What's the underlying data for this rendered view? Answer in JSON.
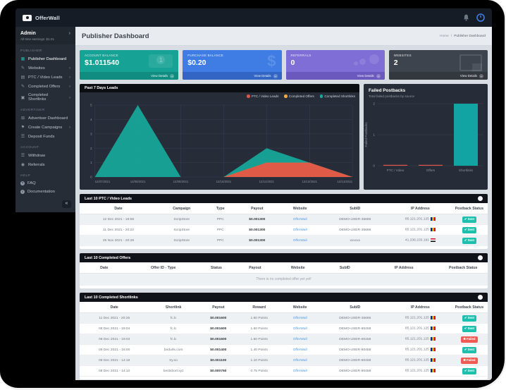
{
  "navbar": {
    "brand": "OfferWall"
  },
  "user": {
    "name": "Admin",
    "earnings": "All time earnings: $1.01"
  },
  "sidebar": {
    "sections": [
      {
        "label": "PUBLISHER",
        "items": [
          {
            "label": "Publisher Dashboard",
            "icon": "dashboard-icon",
            "active": true
          },
          {
            "label": "Websites",
            "icon": "edit-square-icon",
            "chevron": true
          },
          {
            "label": "PTC / Video Leads",
            "icon": "table-icon",
            "chevron": true
          },
          {
            "label": "Completed Offers",
            "icon": "edit-square-icon",
            "chevron": true
          },
          {
            "label": "Completed Shortlinks",
            "icon": "link-square-icon",
            "chevron": true
          }
        ]
      },
      {
        "label": "ADVERTISER",
        "items": [
          {
            "label": "Advertiser Dashboard",
            "icon": "grid-icon"
          },
          {
            "label": "Create Campaigns",
            "icon": "flag-icon",
            "chevron": true
          },
          {
            "label": "Deposit Funds",
            "icon": "bars-icon"
          }
        ]
      },
      {
        "label": "ACCOUNT",
        "items": [
          {
            "label": "Withdraw",
            "icon": "bars-icon"
          },
          {
            "label": "Referrals",
            "icon": "users-icon"
          }
        ]
      },
      {
        "label": "HELP",
        "items": [
          {
            "label": "FAQ",
            "icon": "question-circle-icon"
          },
          {
            "label": "Documentation",
            "icon": "info-circle-icon"
          }
        ]
      }
    ]
  },
  "header": {
    "title": "Publisher Dashboard",
    "breadcrumb": [
      "Home",
      "Publisher Dashboard"
    ]
  },
  "cards": [
    {
      "label": "ACCOUNT BALANCE",
      "value": "$1.011540",
      "link": "View Details",
      "color": "#16a294",
      "footer": "#108d80",
      "icon": "money-bill-icon"
    },
    {
      "label": "PURCHASE BALANCE",
      "value": "$0.20",
      "link": "View Details",
      "color": "#3f7de4",
      "footer": "#3366c4",
      "icon": "dollar-icon"
    },
    {
      "label": "REFERRALS",
      "value": "0",
      "link": "View Details",
      "color": "#7f6ed6",
      "footer": "#6b59bd",
      "icon": "users-circles-icon"
    },
    {
      "label": "WEBSITES",
      "value": "2",
      "link": "View Details",
      "color": "#3e444e",
      "footer": "#33383f",
      "icon": "browser-icon"
    }
  ],
  "chart_data": [
    {
      "type": "area",
      "title": "Past 7 Days Leads",
      "x": [
        "12/07/2021",
        "12/08/2021",
        "12/09/2021",
        "12/10/2021",
        "12/11/2021",
        "12/12/2021",
        "12/13/2021"
      ],
      "series": [
        {
          "name": "PTC / Video Leads",
          "color": "#e05449",
          "values": [
            0,
            0,
            0,
            0,
            1,
            1,
            0
          ]
        },
        {
          "name": "Completed Offers",
          "color": "#f3a83b",
          "values": [
            0,
            0,
            0,
            0,
            0,
            0,
            0
          ]
        },
        {
          "name": "Completed Shortlinks",
          "color": "#16a99b",
          "values": [
            0,
            5,
            0,
            0,
            1,
            0,
            0
          ]
        }
      ],
      "stacked": true,
      "ylim": [
        0,
        5
      ],
      "grid": true,
      "legend_position": "top-right"
    },
    {
      "type": "bar",
      "title": "Failed Postbacks",
      "subtitle": "Total failed postbacks by source",
      "categories": [
        "PTC / Video",
        "Offers",
        "Shortlinks"
      ],
      "values": [
        0,
        0,
        2
      ],
      "bar_colors": [
        "#e05449",
        "#e05449",
        "#12a3a3"
      ],
      "ylabel": "Failed Postbacks",
      "ylim": [
        0,
        2
      ],
      "grid": true
    }
  ],
  "tables": {
    "ptc": {
      "title": "Last 10 PTC / Video Leads",
      "columns": [
        "Date",
        "Campaign",
        "Type",
        "Payout",
        "Website",
        "SubID",
        "IP Address",
        "Postback Status"
      ],
      "rows": [
        {
          "date": "12 Dec 2021 - 18:58",
          "campaign": "ScripStore",
          "type": "PPC",
          "payout": "$0.001300",
          "website": "OfferWall",
          "subid": "DEMO-USER-35686",
          "ip": "85.121.201.125",
          "flag": "ro",
          "status": "Sent"
        },
        {
          "date": "11 Dec 2021 - 20:22",
          "campaign": "ScripStore",
          "type": "PPC",
          "payout": "$0.001300",
          "website": "OfferWall",
          "subid": "DEMO-USER-35686",
          "ip": "85.121.201.125",
          "flag": "ro",
          "status": "Sent"
        },
        {
          "date": "25 Nov 2021 - 20:28",
          "campaign": "ScripStore",
          "type": "PPC",
          "payout": "$0.001300",
          "website": "OfferWall",
          "subid": "xxxxxx",
          "ip": "41.236.233.191",
          "flag": "eg",
          "status": "Sent"
        }
      ]
    },
    "offers": {
      "title": "Last 10 Completed Offers",
      "columns": [
        "Date",
        "Offer ID - Type",
        "Status",
        "Payout",
        "Website",
        "SubID",
        "IP Address",
        "Postback Status"
      ],
      "rows": [],
      "empty": "There is no completed offer yet yet!"
    },
    "shortlinks": {
      "title": "Last 10 Completed Shortlinks",
      "columns": [
        "Date",
        "Shortlink",
        "Payout",
        "Reward",
        "Website",
        "SubID",
        "IP Address",
        "Postback Status"
      ],
      "rows": [
        {
          "date": "11 Dec 2021 - 20:25",
          "shortlink": "fc.lc",
          "payout": "$0.001600",
          "reward": "1.60 Points",
          "website": "OfferWall",
          "subid": "DEMO-USER-35686",
          "ip": "85.121.201.125",
          "flag": "ro",
          "status": "Sent"
        },
        {
          "date": "08 Dec 2021 - 19:04",
          "shortlink": "fc.lc",
          "payout": "$0.001600",
          "reward": "1.60 Points",
          "website": "OfferWall",
          "subid": "DEMO-USER-80458",
          "ip": "85.121.201.125",
          "flag": "ro",
          "status": "Sent"
        },
        {
          "date": "08 Dec 2021 - 19:03",
          "shortlink": "fc.lc",
          "payout": "$0.001600",
          "reward": "1.60 Points",
          "website": "OfferWall",
          "subid": "DEMO-USER-80458",
          "ip": "85.121.201.125",
          "flag": "ro",
          "status": "Failed"
        },
        {
          "date": "08 Dec 2021 - 16:00",
          "shortlink": "birdurls.com",
          "payout": "$0.001400",
          "reward": "1.40 Points",
          "website": "OfferWall",
          "subid": "DEMO-USER-80458",
          "ip": "85.121.201.125",
          "flag": "ro",
          "status": "Sent"
        },
        {
          "date": "08 Dec 2021 - 14:18",
          "shortlink": "try.so",
          "payout": "$0.001100",
          "reward": "1.10 Points",
          "website": "OfferWall",
          "subid": "DEMO-USER-80458",
          "ip": "85.121.201.125",
          "flag": "ro",
          "status": "Failed"
        },
        {
          "date": "08 Dec 2021 - 14:10",
          "shortlink": "bestshort.xyz",
          "payout": "$0.000750",
          "reward": "0.75 Points",
          "website": "OfferWall",
          "subid": "DEMO-USER-80458",
          "ip": "85.121.201.125",
          "flag": "ro",
          "status": "Sent"
        }
      ]
    }
  }
}
